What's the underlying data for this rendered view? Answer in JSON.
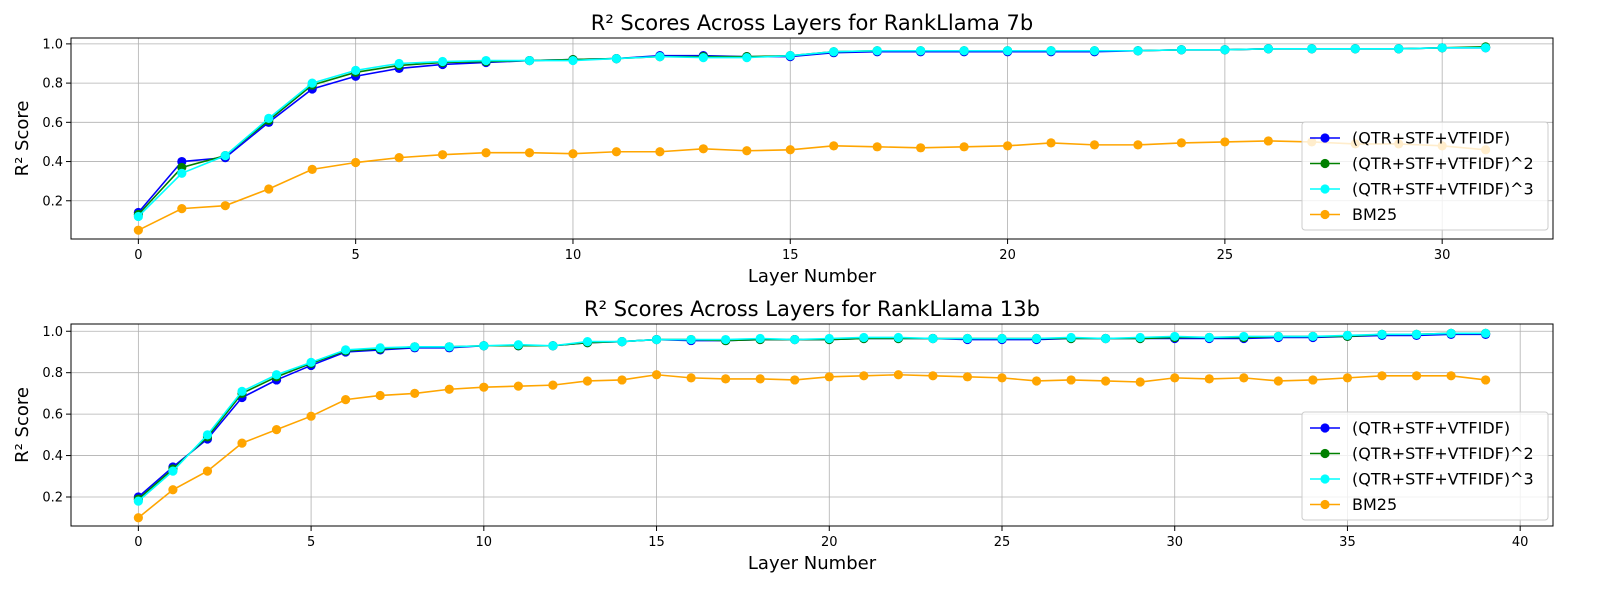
{
  "chart_data": [
    {
      "type": "line",
      "title": "R² Scores Across Layers for RankLlama 7b",
      "xlabel": "Layer Number",
      "ylabel": "R² Score",
      "xlim": [
        -1.55,
        32.55
      ],
      "ylim": [
        0.005,
        1.03
      ],
      "xticks": [
        0,
        5,
        10,
        15,
        20,
        25,
        30
      ],
      "yticks": [
        0.2,
        0.4,
        0.6,
        0.8,
        1.0
      ],
      "grid": true,
      "legend_position": "center-right",
      "x": [
        0,
        1,
        2,
        3,
        4,
        5,
        6,
        7,
        8,
        9,
        10,
        11,
        12,
        13,
        14,
        15,
        16,
        17,
        18,
        19,
        20,
        21,
        22,
        23,
        24,
        25,
        26,
        27,
        28,
        29,
        30,
        31
      ],
      "series": [
        {
          "name": "(QTR+STF+VTFIDF)",
          "color": "#0000ff",
          "values": [
            0.14,
            0.4,
            0.42,
            0.6,
            0.77,
            0.835,
            0.875,
            0.895,
            0.905,
            0.915,
            0.92,
            0.925,
            0.94,
            0.94,
            0.935,
            0.935,
            0.955,
            0.96,
            0.96,
            0.96,
            0.96,
            0.96,
            0.96,
            0.965,
            0.97,
            0.97,
            0.975,
            0.975,
            0.975,
            0.975,
            0.98,
            0.98
          ]
        },
        {
          "name": "(QTR+STF+VTFIDF)^2",
          "color": "#008000",
          "values": [
            0.13,
            0.37,
            0.43,
            0.61,
            0.79,
            0.855,
            0.89,
            0.905,
            0.91,
            0.915,
            0.92,
            0.925,
            0.935,
            0.935,
            0.935,
            0.94,
            0.96,
            0.965,
            0.965,
            0.965,
            0.965,
            0.965,
            0.965,
            0.965,
            0.97,
            0.97,
            0.975,
            0.975,
            0.975,
            0.975,
            0.98,
            0.985
          ]
        },
        {
          "name": "(QTR+STF+VTFIDF)^3",
          "color": "#00ffff",
          "values": [
            0.12,
            0.34,
            0.43,
            0.62,
            0.8,
            0.865,
            0.9,
            0.91,
            0.915,
            0.915,
            0.915,
            0.925,
            0.935,
            0.93,
            0.93,
            0.94,
            0.96,
            0.965,
            0.965,
            0.965,
            0.965,
            0.965,
            0.965,
            0.965,
            0.97,
            0.97,
            0.975,
            0.975,
            0.975,
            0.975,
            0.98,
            0.98
          ]
        },
        {
          "name": "BM25",
          "color": "#ffa500",
          "values": [
            0.05,
            0.16,
            0.175,
            0.26,
            0.36,
            0.395,
            0.42,
            0.435,
            0.445,
            0.445,
            0.44,
            0.45,
            0.45,
            0.465,
            0.455,
            0.46,
            0.48,
            0.475,
            0.47,
            0.475,
            0.48,
            0.495,
            0.485,
            0.485,
            0.495,
            0.5,
            0.505,
            0.5,
            0.49,
            0.49,
            0.48,
            0.46
          ]
        }
      ]
    },
    {
      "type": "line",
      "title": "R² Scores Across Layers for RankLlama 13b",
      "xlabel": "Layer Number",
      "ylabel": "R² Score",
      "xlim": [
        -1.95,
        40.95
      ],
      "ylim": [
        0.06,
        1.035
      ],
      "xticks": [
        0,
        5,
        10,
        15,
        20,
        25,
        30,
        35,
        40
      ],
      "yticks": [
        0.2,
        0.4,
        0.6,
        0.8,
        1.0
      ],
      "grid": true,
      "legend_position": "lower-right",
      "x": [
        0,
        1,
        2,
        3,
        4,
        5,
        6,
        7,
        8,
        9,
        10,
        11,
        12,
        13,
        14,
        15,
        16,
        17,
        18,
        19,
        20,
        21,
        22,
        23,
        24,
        25,
        26,
        27,
        28,
        29,
        30,
        31,
        32,
        33,
        34,
        35,
        36,
        37,
        38,
        39
      ],
      "series": [
        {
          "name": "(QTR+STF+VTFIDF)",
          "color": "#0000ff",
          "values": [
            0.2,
            0.345,
            0.48,
            0.68,
            0.765,
            0.835,
            0.9,
            0.91,
            0.92,
            0.92,
            0.93,
            0.93,
            0.93,
            0.945,
            0.95,
            0.96,
            0.955,
            0.955,
            0.96,
            0.96,
            0.96,
            0.965,
            0.965,
            0.965,
            0.96,
            0.96,
            0.96,
            0.965,
            0.965,
            0.965,
            0.965,
            0.965,
            0.965,
            0.97,
            0.97,
            0.975,
            0.98,
            0.98,
            0.985,
            0.985
          ]
        },
        {
          "name": "(QTR+STF+VTFIDF)^2",
          "color": "#008000",
          "values": [
            0.19,
            0.335,
            0.49,
            0.7,
            0.78,
            0.845,
            0.905,
            0.915,
            0.925,
            0.925,
            0.93,
            0.93,
            0.93,
            0.945,
            0.95,
            0.96,
            0.96,
            0.955,
            0.96,
            0.96,
            0.96,
            0.965,
            0.965,
            0.965,
            0.965,
            0.965,
            0.965,
            0.965,
            0.965,
            0.965,
            0.97,
            0.97,
            0.97,
            0.975,
            0.975,
            0.975,
            0.985,
            0.985,
            0.99,
            0.99
          ]
        },
        {
          "name": "(QTR+STF+VTFIDF)^3",
          "color": "#00ffff",
          "values": [
            0.18,
            0.325,
            0.5,
            0.71,
            0.79,
            0.85,
            0.91,
            0.92,
            0.925,
            0.925,
            0.93,
            0.935,
            0.93,
            0.95,
            0.95,
            0.96,
            0.96,
            0.96,
            0.965,
            0.96,
            0.965,
            0.97,
            0.97,
            0.965,
            0.965,
            0.965,
            0.965,
            0.97,
            0.965,
            0.97,
            0.975,
            0.97,
            0.975,
            0.975,
            0.975,
            0.98,
            0.985,
            0.985,
            0.99,
            0.99
          ]
        },
        {
          "name": "BM25",
          "color": "#ffa500",
          "values": [
            0.1,
            0.235,
            0.325,
            0.46,
            0.525,
            0.59,
            0.67,
            0.69,
            0.7,
            0.72,
            0.73,
            0.735,
            0.74,
            0.76,
            0.765,
            0.79,
            0.775,
            0.77,
            0.77,
            0.765,
            0.78,
            0.785,
            0.79,
            0.785,
            0.78,
            0.775,
            0.76,
            0.765,
            0.76,
            0.755,
            0.775,
            0.77,
            0.775,
            0.76,
            0.765,
            0.775,
            0.785,
            0.785,
            0.785,
            0.765
          ]
        }
      ]
    }
  ]
}
